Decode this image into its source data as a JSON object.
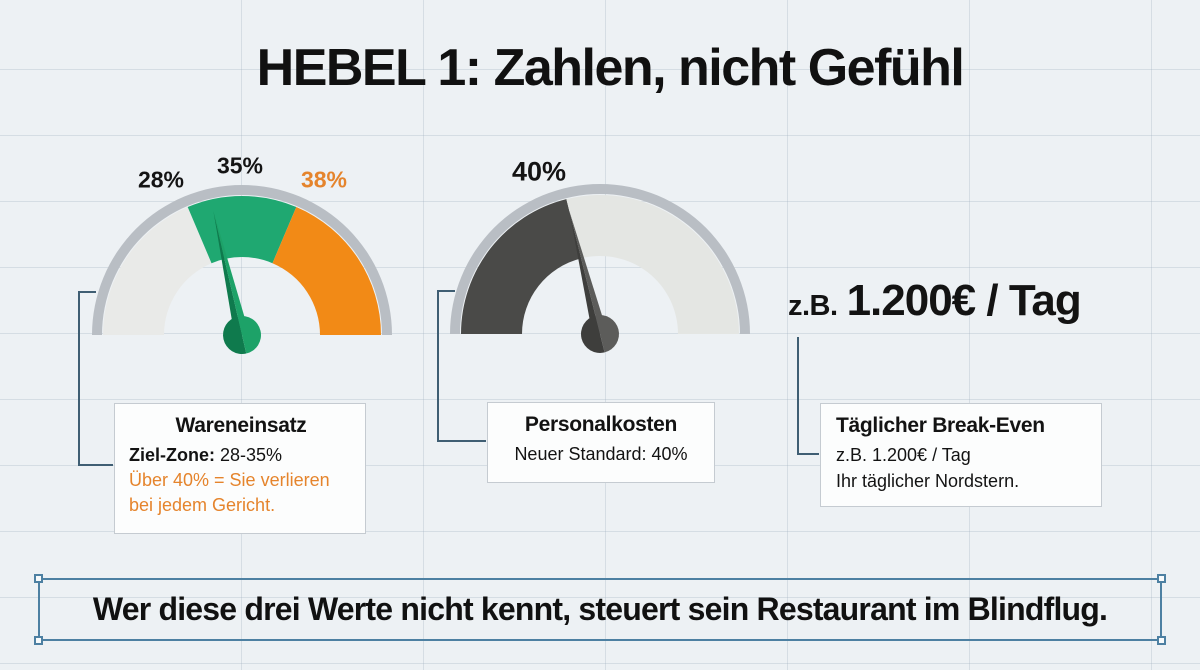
{
  "page": {
    "background": "#edf1f4",
    "grid_color": "rgba(160,175,190,0.3)"
  },
  "title": "HEBEL 1: Zahlen, nicht Gefühl",
  "chart_data": [
    {
      "type": "gauge",
      "name": "Wareneinsatz",
      "unit": "%",
      "tick_labels": [
        {
          "text": "28%",
          "color": "#141414"
        },
        {
          "text": "35%",
          "color": "#141414"
        },
        {
          "text": "38%",
          "color": "#e5842c"
        }
      ],
      "segments": [
        {
          "from_deg": 180,
          "to_deg": 113,
          "color": "#e9eae8"
        },
        {
          "from_deg": 113,
          "to_deg": 67,
          "color": "#1fa871"
        },
        {
          "from_deg": 67,
          "to_deg": 0,
          "color": "#f28a16"
        }
      ],
      "needle": {
        "angle_deg": 103,
        "color_dark": "#0f7a4d",
        "color_light": "#1da268"
      },
      "rim_color": "#b9bec4"
    },
    {
      "type": "gauge",
      "name": "Personalkosten",
      "unit": "%",
      "tick_labels": [
        {
          "text": "40%",
          "color": "#141414"
        }
      ],
      "segments": [
        {
          "from_deg": 180,
          "to_deg": 104,
          "color": "#4a4a48"
        },
        {
          "from_deg": 104,
          "to_deg": 0,
          "color": "#e4e6e3"
        }
      ],
      "needle": {
        "angle_deg": 104,
        "color_dark": "#3e3e3c",
        "color_light": "#5c5c5a"
      },
      "rim_color": "#b9bec4"
    }
  ],
  "callout": {
    "prefix": "z.B.",
    "value": "1.200€ / Tag"
  },
  "boxes": [
    {
      "title": "Wareneinsatz",
      "line_label": "Ziel-Zone:",
      "line_value": " 28-35%",
      "warning_line1": "Über 40% = Sie verlieren",
      "warning_line2": "bei jedem Gericht.",
      "warning_color": "#e5842c"
    },
    {
      "title": "Personalkosten",
      "line": "Neuer Standard: 40%"
    },
    {
      "title": "Täglicher Break-Even",
      "line1": "z.B. 1.200€ / Tag",
      "line2": "Ihr täglicher Nordstern."
    }
  ],
  "banner": {
    "text": "Wer diese drei Werte nicht kennt, steuert sein Restaurant im Blindflug.",
    "border_color": "#4d80a2"
  },
  "connector_color": "#3f5e73"
}
